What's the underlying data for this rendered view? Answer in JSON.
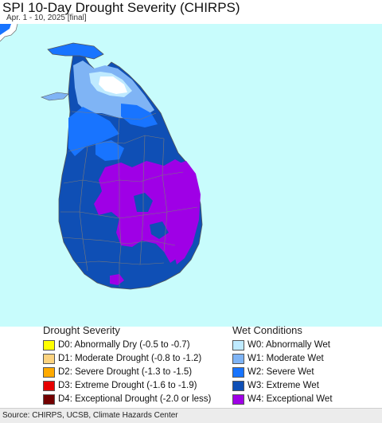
{
  "header": {
    "title": "SPI 10-Day Drought Severity (CHIRPS)",
    "subtitle": "Apr. 1 - 10, 2025 [final]"
  },
  "map": {
    "ocean_color": "#c8fcfc",
    "land_area_color": "#ffffff",
    "boundary_color": "#7a7a7a"
  },
  "legend": {
    "drought": {
      "heading": "Drought Severity",
      "items": [
        {
          "label": "D0: Abnormally Dry (-0.5 to -0.7)",
          "color": "#ffff00"
        },
        {
          "label": "D1: Moderate Drought (-0.8 to -1.2)",
          "color": "#fcd37f"
        },
        {
          "label": "D2: Severe Drought (-1.3 to -1.5)",
          "color": "#ffaa00"
        },
        {
          "label": "D3: Extreme Drought (-1.6 to -1.9)",
          "color": "#e60000"
        },
        {
          "label": "D4: Exceptional Drought (-2.0 or less)",
          "color": "#730000"
        }
      ]
    },
    "wet": {
      "heading": "Wet Conditions",
      "items": [
        {
          "label": "W0: Abnormally Wet",
          "color": "#bfeaff"
        },
        {
          "label": "W1: Moderate Wet",
          "color": "#7fb4f5"
        },
        {
          "label": "W2: Severe Wet",
          "color": "#1874ff"
        },
        {
          "label": "W3: Extreme Wet",
          "color": "#0f4fb5"
        },
        {
          "label": "W4: Exceptional Wet",
          "color": "#9f00e6"
        }
      ]
    }
  },
  "footer": {
    "source": "Source: CHIRPS, UCSB, Climate Hazards Center"
  }
}
